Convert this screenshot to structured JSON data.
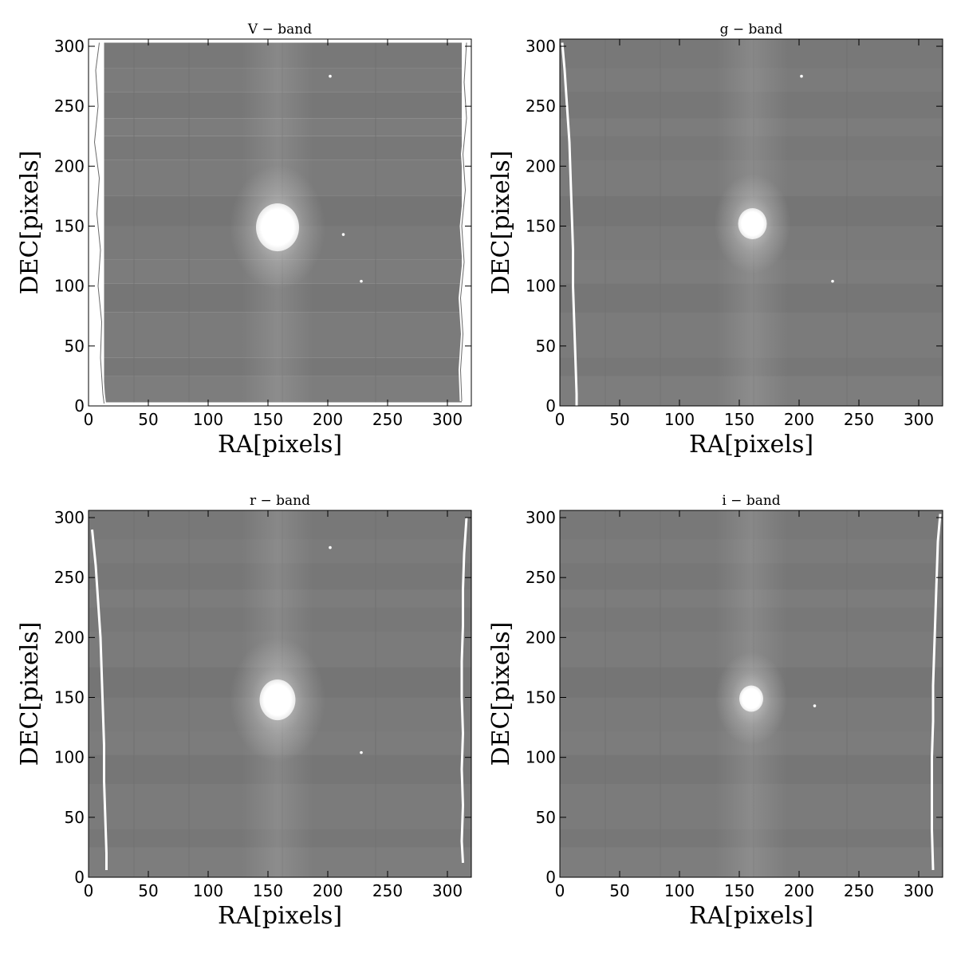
{
  "chart_data": [
    {
      "type": "heatmap",
      "title": "V − band",
      "xlabel": "RA[pixels]",
      "ylabel": "DEC[pixels]",
      "xlim": [
        0,
        320
      ],
      "ylim": [
        0,
        306
      ],
      "xticks": [
        "0",
        "50",
        "100",
        "150",
        "200",
        "250",
        "300"
      ],
      "yticks": [
        "0",
        "50",
        "100",
        "150",
        "200",
        "250",
        "300"
      ],
      "colormap": "gray",
      "source": {
        "x": 158,
        "y": 149,
        "rx": 18,
        "ry": 20,
        "halo": 40
      },
      "stars": [
        [
          202,
          275
        ],
        [
          228,
          104
        ],
        [
          213,
          143
        ]
      ]
    },
    {
      "type": "heatmap",
      "title": "g − band",
      "xlabel": "RA[pixels]",
      "ylabel": "DEC[pixels]",
      "xlim": [
        0,
        320
      ],
      "ylim": [
        0,
        306
      ],
      "xticks": [
        "0",
        "50",
        "100",
        "150",
        "200",
        "250",
        "300"
      ],
      "yticks": [
        "0",
        "50",
        "100",
        "150",
        "200",
        "250",
        "300"
      ],
      "colormap": "gray",
      "source": {
        "x": 161,
        "y": 152,
        "rx": 12,
        "ry": 13,
        "halo": 32
      },
      "stars": [
        [
          202,
          275
        ],
        [
          228,
          104
        ]
      ]
    },
    {
      "type": "heatmap",
      "title": "r − band",
      "xlabel": "RA[pixels]",
      "ylabel": "DEC[pixels]",
      "xlim": [
        0,
        320
      ],
      "ylim": [
        0,
        306
      ],
      "xticks": [
        "0",
        "50",
        "100",
        "150",
        "200",
        "250",
        "300"
      ],
      "yticks": [
        "0",
        "50",
        "100",
        "150",
        "200",
        "250",
        "300"
      ],
      "colormap": "gray",
      "source": {
        "x": 158,
        "y": 148,
        "rx": 15,
        "ry": 17,
        "halo": 40
      },
      "stars": [
        [
          202,
          275
        ],
        [
          228,
          104
        ]
      ]
    },
    {
      "type": "heatmap",
      "title": "i − band",
      "xlabel": "RA[pixels]",
      "ylabel": "DEC[pixels]",
      "xlim": [
        0,
        320
      ],
      "ylim": [
        0,
        306
      ],
      "xticks": [
        "0",
        "50",
        "100",
        "150",
        "200",
        "250",
        "300"
      ],
      "yticks": [
        "0",
        "50",
        "100",
        "150",
        "200",
        "250",
        "300"
      ],
      "colormap": "gray",
      "source": {
        "x": 160,
        "y": 149,
        "rx": 10,
        "ry": 11,
        "halo": 30
      },
      "stars": [
        [
          213,
          143
        ]
      ]
    }
  ]
}
